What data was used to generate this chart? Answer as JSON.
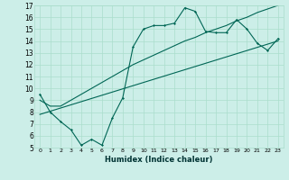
{
  "xlabel": "Humidex (Indice chaleur)",
  "bg_color": "#cceee8",
  "grid_color": "#aaddcc",
  "line_color": "#006655",
  "xlim": [
    -0.5,
    23.5
  ],
  "ylim": [
    5,
    17
  ],
  "xticks": [
    0,
    1,
    2,
    3,
    4,
    5,
    6,
    7,
    8,
    9,
    10,
    11,
    12,
    13,
    14,
    15,
    16,
    17,
    18,
    19,
    20,
    21,
    22,
    23
  ],
  "yticks": [
    5,
    6,
    7,
    8,
    9,
    10,
    11,
    12,
    13,
    14,
    15,
    16,
    17
  ],
  "series1_x": [
    0,
    1,
    2,
    3,
    4,
    5,
    6,
    7,
    8,
    9,
    10,
    11,
    12,
    13,
    14,
    15,
    16,
    17,
    18,
    19,
    20,
    21,
    22,
    23
  ],
  "series1_y": [
    9.5,
    8.0,
    7.2,
    6.5,
    5.2,
    5.7,
    5.2,
    7.5,
    9.2,
    13.5,
    15.0,
    15.3,
    15.3,
    15.5,
    16.8,
    16.5,
    14.8,
    14.7,
    14.7,
    15.8,
    15.0,
    13.8,
    13.2,
    14.2
  ],
  "series2_x": [
    0,
    1,
    2,
    3,
    4,
    5,
    6,
    7,
    8,
    9,
    10,
    11,
    12,
    13,
    14,
    15,
    16,
    17,
    18,
    19,
    20,
    21,
    22,
    23
  ],
  "series2_y": [
    9.0,
    8.5,
    8.5,
    9.0,
    9.5,
    10.0,
    10.5,
    11.0,
    11.5,
    12.0,
    12.4,
    12.8,
    13.2,
    13.6,
    14.0,
    14.3,
    14.7,
    15.0,
    15.3,
    15.7,
    16.0,
    16.4,
    16.7,
    17.0
  ],
  "series3_x": [
    0,
    23
  ],
  "series3_y": [
    7.8,
    14.0
  ]
}
